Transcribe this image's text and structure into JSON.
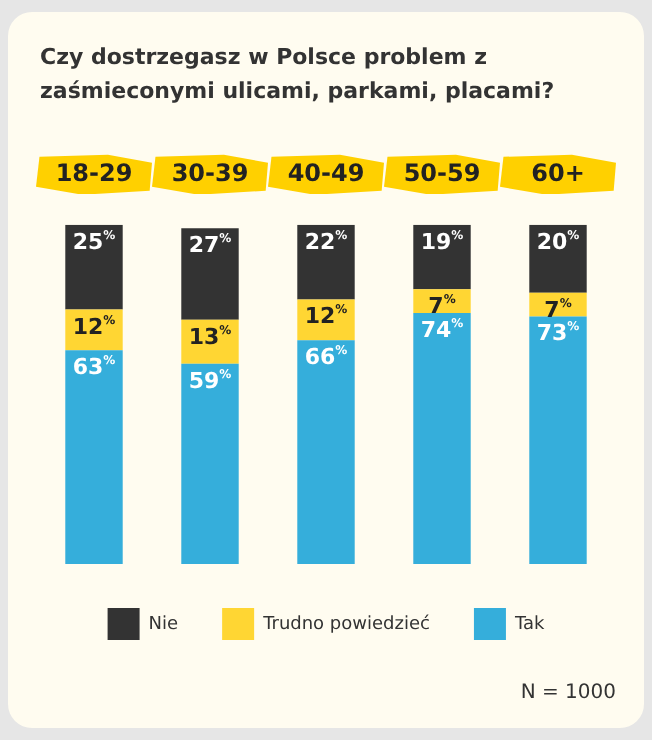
{
  "chart_data": {
    "type": "bar",
    "title": "Czy dostrzegasz w Polsce problem z zaśmieconymi ulicami, parkami, placami?",
    "categories": [
      "18-29",
      "30-39",
      "40-49",
      "50-59",
      "60+"
    ],
    "stacked": true,
    "grid": false,
    "legend": "bottom",
    "series": [
      {
        "name": "Tak",
        "color": "#35aedb",
        "values": [
          63,
          59,
          66,
          74,
          73
        ],
        "value_labels": [
          "63$^{%}$",
          "59$^{%}$",
          "66$^{%}$",
          "74$^{%}$",
          "73$^{%}$"
        ]
      },
      {
        "name": "Trudno powiedzieć",
        "color": "#ffd633",
        "values": [
          12,
          13,
          12,
          7,
          7
        ],
        "value_labels": [
          "12$^{%}$",
          "13$^{%}$",
          "12$^{%}$",
          "7$^{%}$",
          "7$^{%}$"
        ]
      },
      {
        "name": "Nie",
        "color": "#333333",
        "values": [
          25,
          27,
          22,
          19,
          20
        ],
        "value_labels": [
          "25$^{%}$",
          "27$^{%}$",
          "22$^{%}$",
          "19$^{%}$",
          "20$^{%}$"
        ]
      }
    ],
    "annotations": [
      "N = 1000"
    ]
  }
}
